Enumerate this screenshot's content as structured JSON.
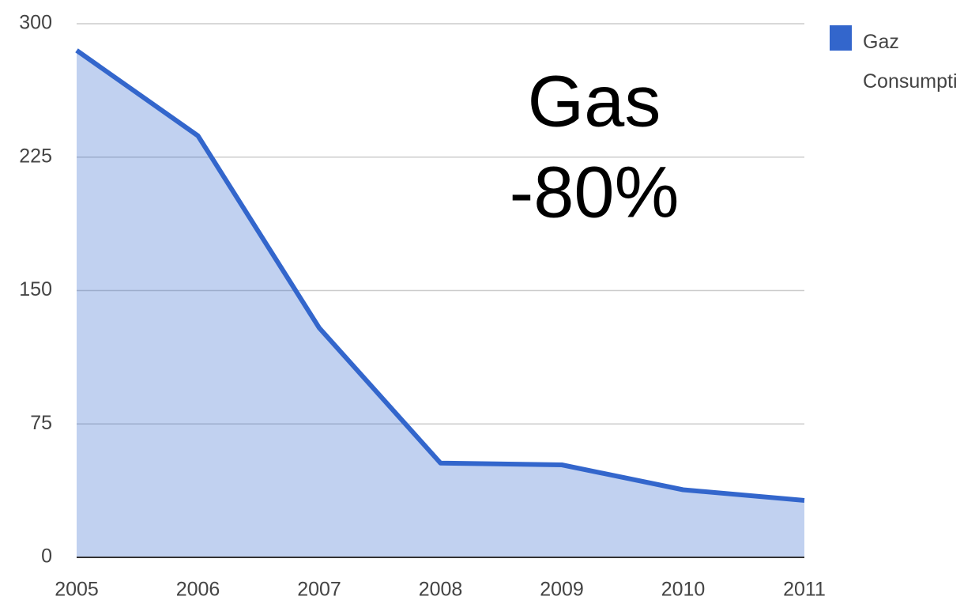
{
  "chart_data": {
    "type": "area",
    "categories": [
      "2005",
      "2006",
      "2007",
      "2008",
      "2009",
      "2010",
      "2011"
    ],
    "series": [
      {
        "name": "Gaz Consumpti",
        "color": "#3366cc",
        "values": [
          285,
          237,
          129,
          53,
          52,
          38,
          32
        ]
      }
    ],
    "ylim": [
      0,
      300
    ],
    "yticks": [
      0,
      75,
      150,
      225,
      300
    ],
    "grid": true,
    "legend": "right",
    "annotations": [
      "Gas",
      "-80%"
    ]
  }
}
